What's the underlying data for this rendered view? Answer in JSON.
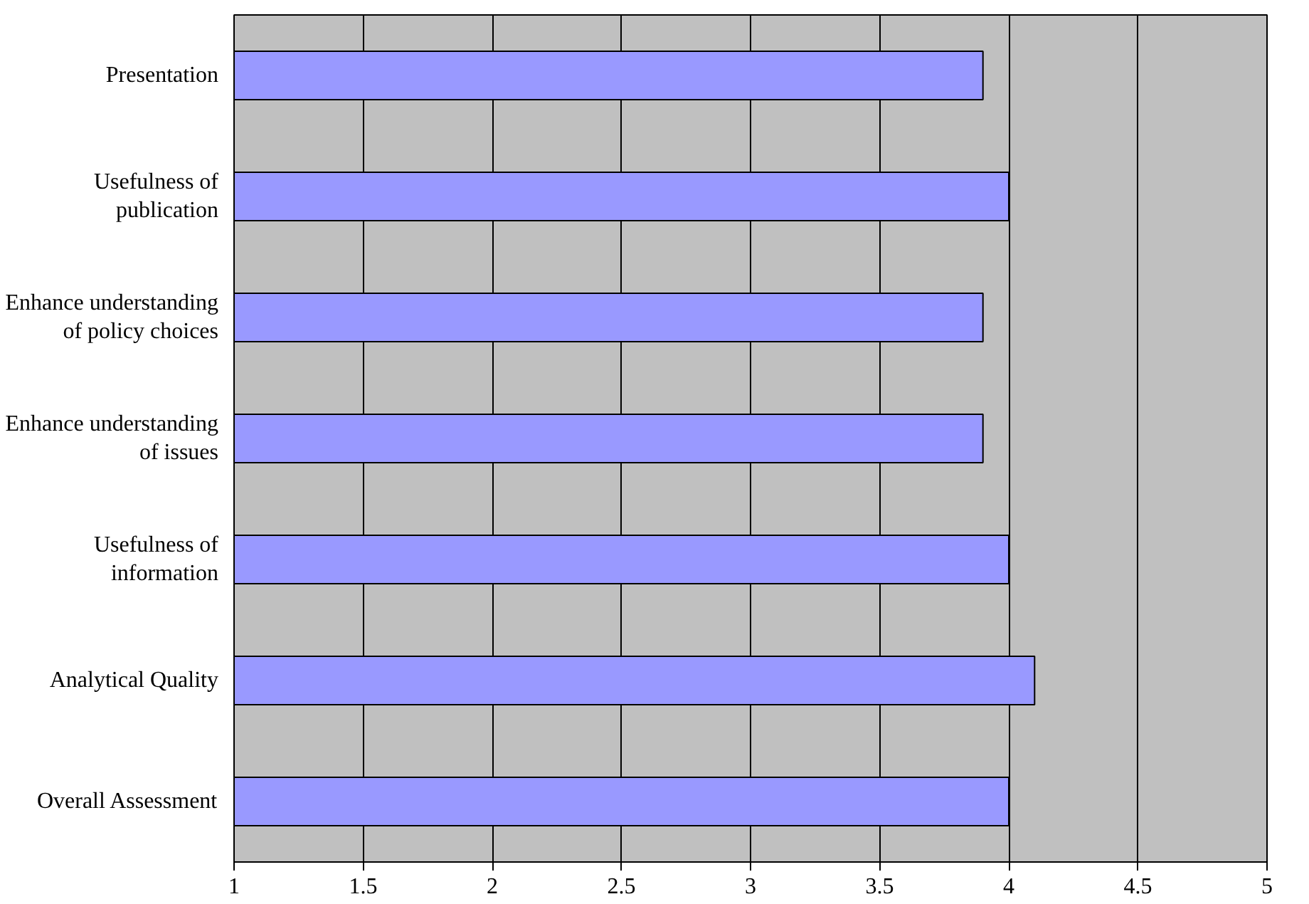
{
  "chart_data": {
    "type": "bar",
    "orientation": "horizontal",
    "categories": [
      "Presentation",
      "Usefulness of publication",
      "Enhance understanding of policy choices",
      "Enhance understanding of issues",
      "Usefulness of information",
      "Analytical Quality",
      "Overall Assessment"
    ],
    "values": [
      3.9,
      4.0,
      3.9,
      3.9,
      4.0,
      4.1,
      4.0
    ],
    "color": "#9999ff",
    "xlim": [
      1,
      5
    ],
    "xticks": [
      1,
      1.5,
      2,
      2.5,
      3,
      3.5,
      4,
      4.5,
      5
    ],
    "grid": "x"
  }
}
